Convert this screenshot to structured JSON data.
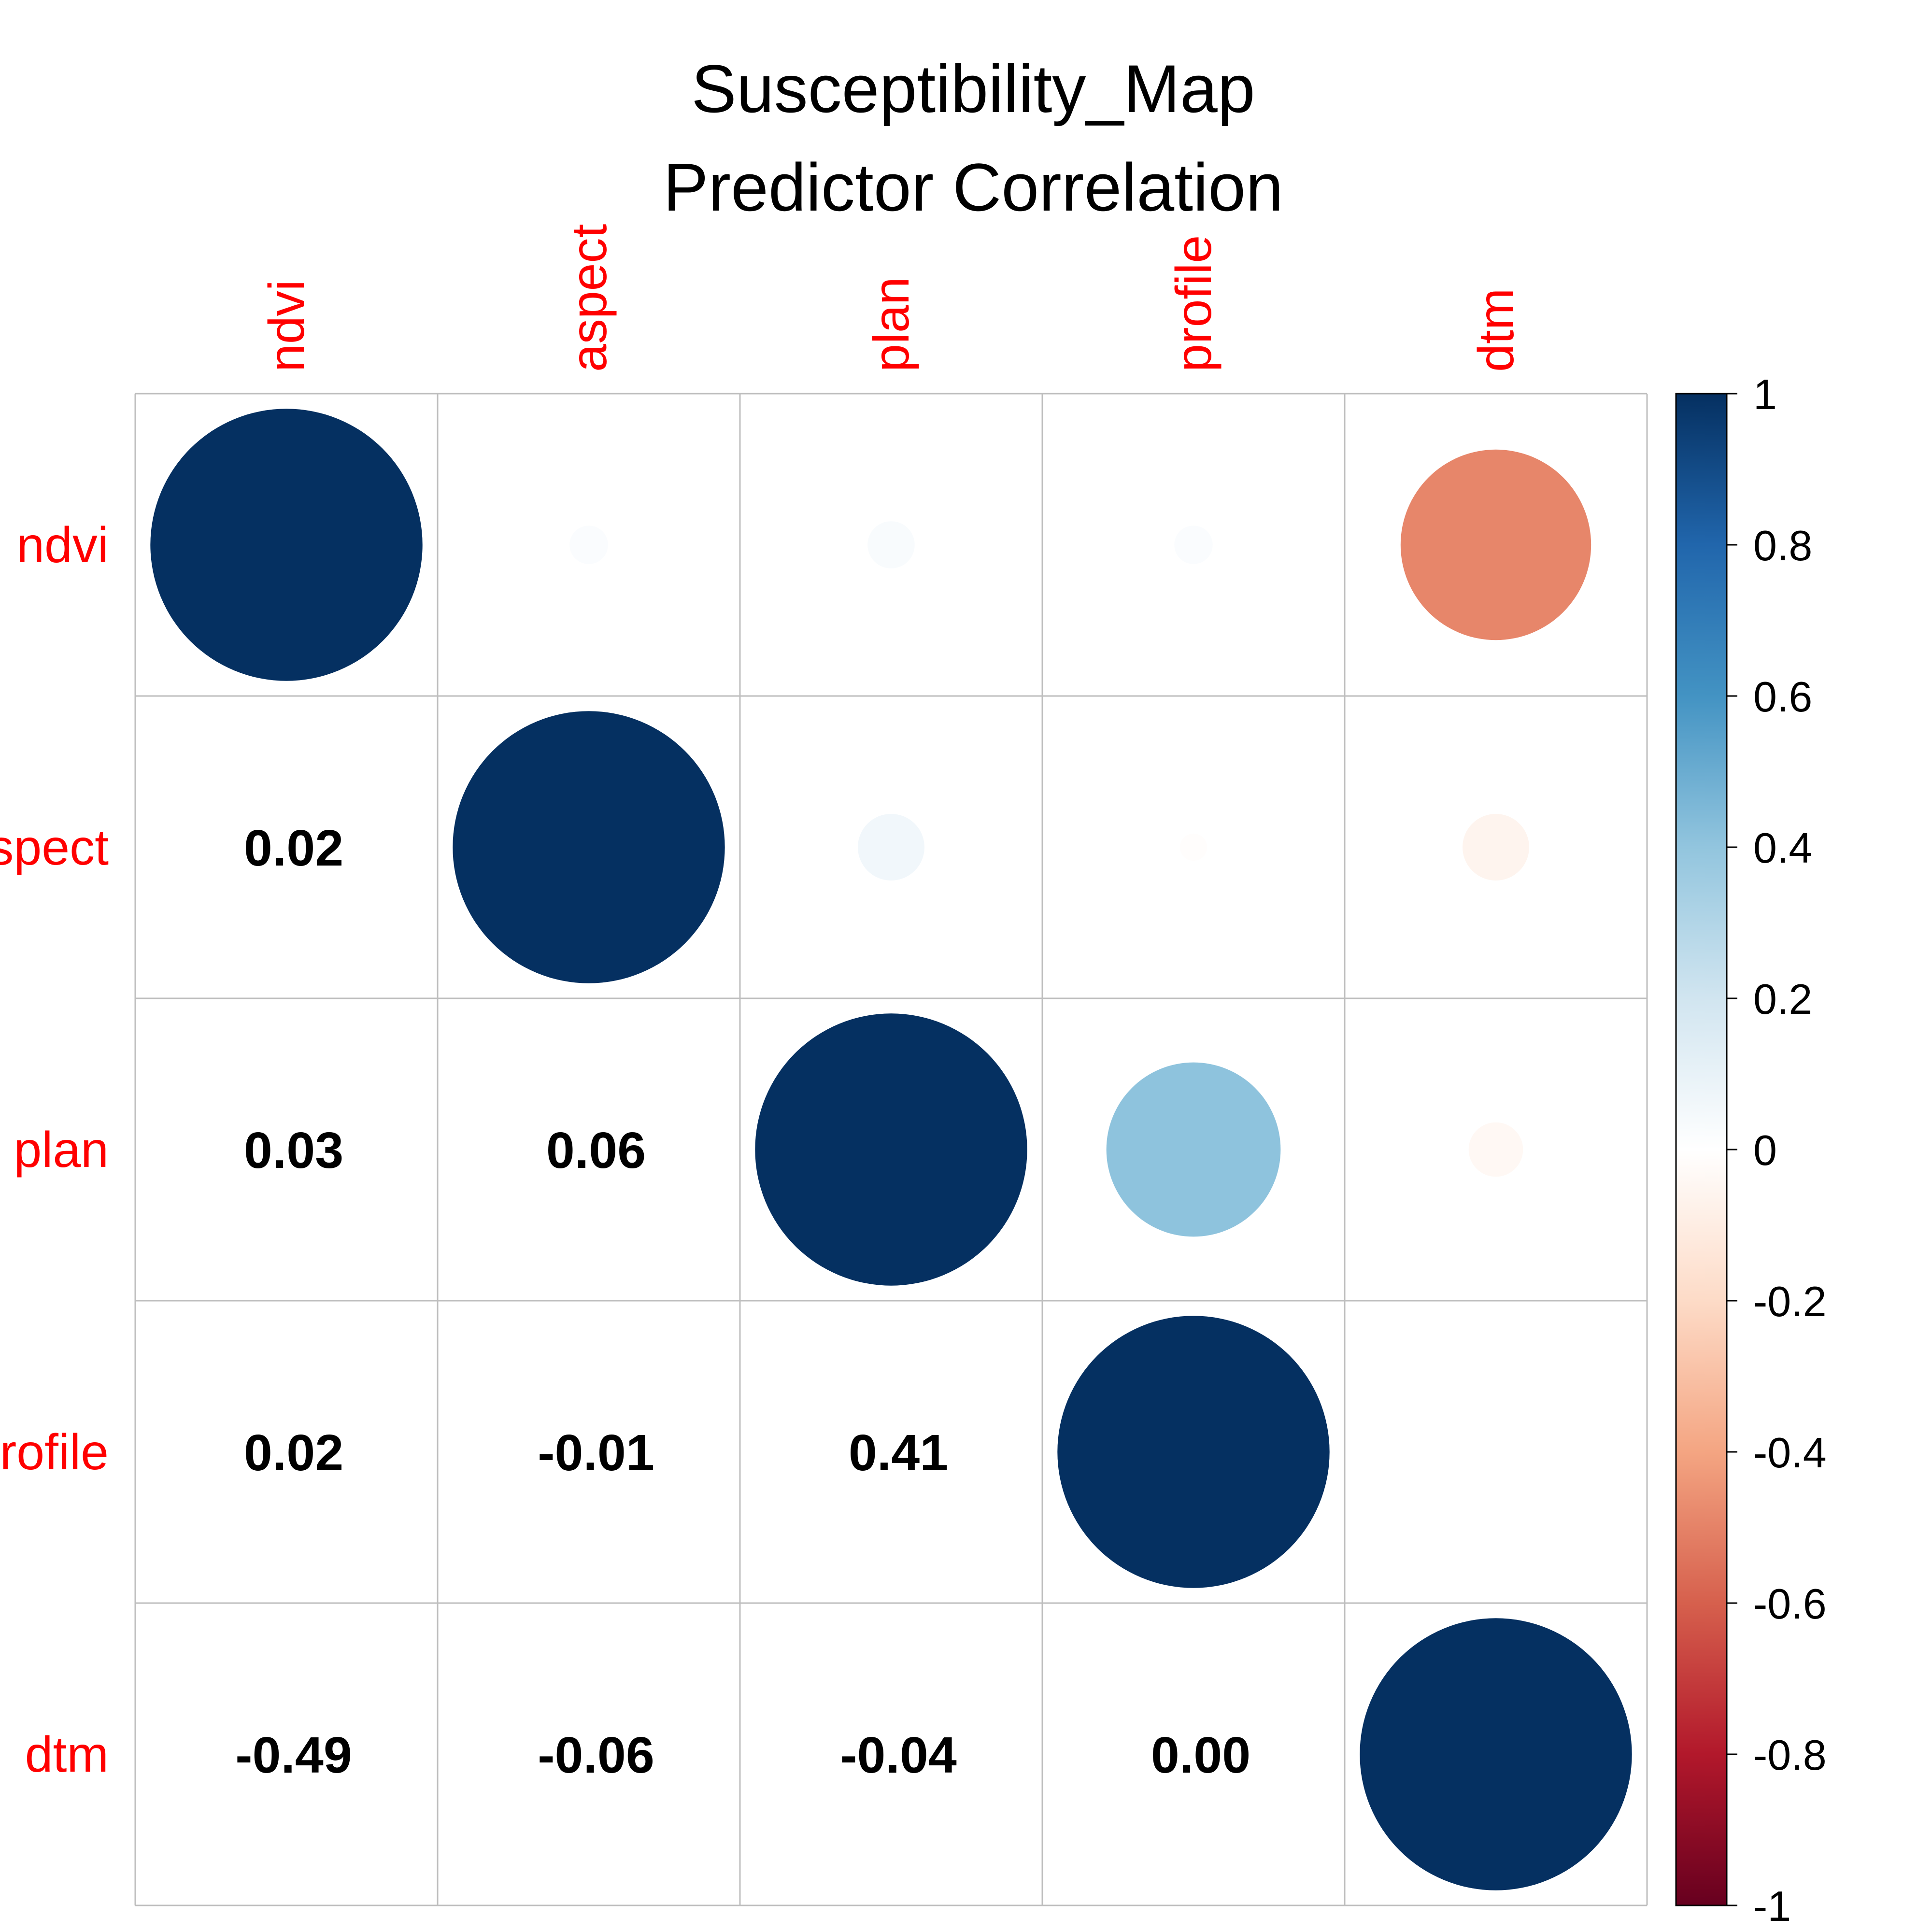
{
  "chart_data": {
    "type": "heatmap",
    "subtype": "correlation-matrix",
    "title": "Susceptibility_Map",
    "subtitle": "Predictor Correlation",
    "variables": [
      "ndvi",
      "aspect",
      "plan",
      "profile",
      "dtm"
    ],
    "matrix": [
      [
        1.0,
        0.02,
        0.03,
        0.02,
        -0.49
      ],
      [
        0.02,
        1.0,
        0.06,
        -0.01,
        -0.06
      ],
      [
        0.03,
        0.06,
        1.0,
        0.41,
        -0.04
      ],
      [
        0.02,
        -0.01,
        0.41,
        1.0,
        0.0
      ],
      [
        -0.49,
        -0.06,
        -0.04,
        0.0,
        1.0
      ]
    ],
    "lower_triangle": "numbers",
    "upper_triangle": "circles",
    "diagonal": "circles",
    "number_format": "two decimals",
    "color_scale": {
      "min": -1,
      "max": 1,
      "ticks": [
        "1",
        "0.8",
        "0.6",
        "0.4",
        "0.2",
        "0",
        "-0.2",
        "-0.4",
        "-0.6",
        "-0.8",
        "-1"
      ],
      "colors": [
        "#67001F",
        "#B2182B",
        "#D6604D",
        "#F4A582",
        "#FDDBC7",
        "#FFFFFF",
        "#D1E5F0",
        "#92C5DE",
        "#4393C3",
        "#2166AC",
        "#053061"
      ]
    },
    "label_color": "#FF0000",
    "grid_color": "#BEBEBE",
    "legend_placement": "right"
  }
}
